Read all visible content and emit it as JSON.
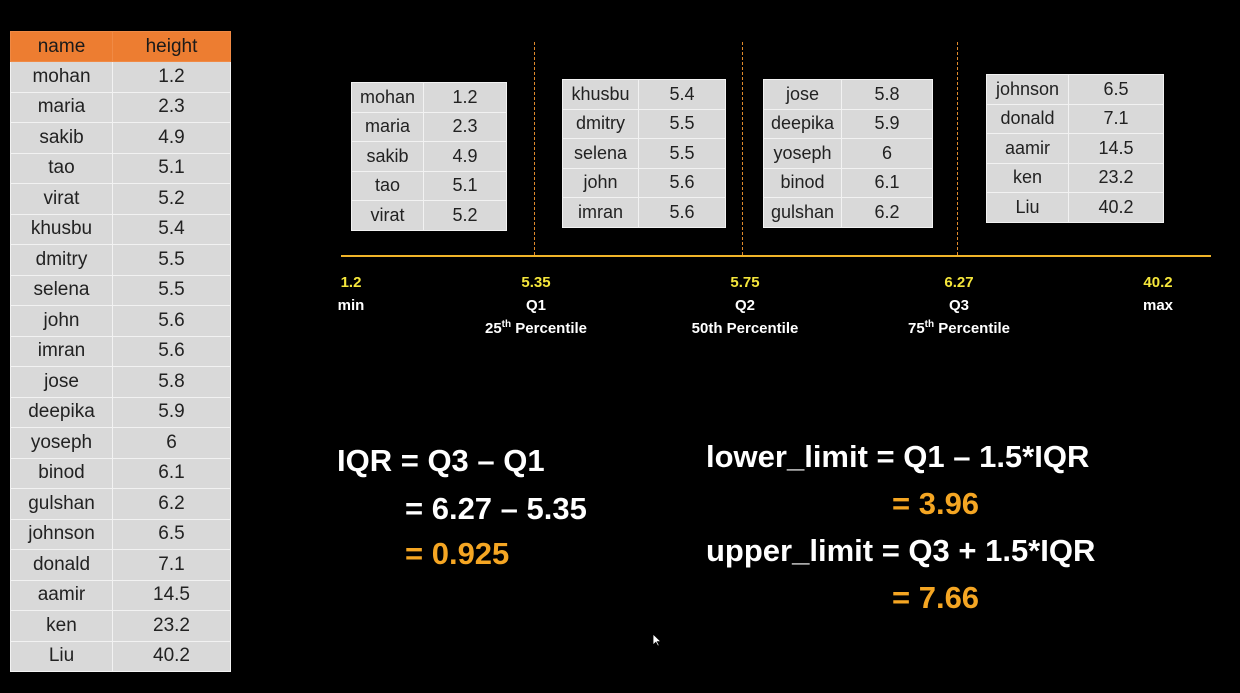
{
  "main_table": {
    "headers": [
      "name",
      "height"
    ],
    "rows": [
      [
        "mohan",
        "1.2"
      ],
      [
        "maria",
        "2.3"
      ],
      [
        "sakib",
        "4.9"
      ],
      [
        "tao",
        "5.1"
      ],
      [
        "virat",
        "5.2"
      ],
      [
        "khusbu",
        "5.4"
      ],
      [
        "dmitry",
        "5.5"
      ],
      [
        "selena",
        "5.5"
      ],
      [
        "john",
        "5.6"
      ],
      [
        "imran",
        "5.6"
      ],
      [
        "jose",
        "5.8"
      ],
      [
        "deepika",
        "5.9"
      ],
      [
        "yoseph",
        "6"
      ],
      [
        "binod",
        "6.1"
      ],
      [
        "gulshan",
        "6.2"
      ],
      [
        "johnson",
        "6.5"
      ],
      [
        "donald",
        "7.1"
      ],
      [
        "aamir",
        "14.5"
      ],
      [
        "ken",
        "23.2"
      ],
      [
        "Liu",
        "40.2"
      ]
    ]
  },
  "groups": [
    {
      "rows": [
        [
          "mohan",
          "1.2"
        ],
        [
          "maria",
          "2.3"
        ],
        [
          "sakib",
          "4.9"
        ],
        [
          "tao",
          "5.1"
        ],
        [
          "virat",
          "5.2"
        ]
      ]
    },
    {
      "rows": [
        [
          "khusbu",
          "5.4"
        ],
        [
          "dmitry",
          "5.5"
        ],
        [
          "selena",
          "5.5"
        ],
        [
          "john",
          "5.6"
        ],
        [
          "imran",
          "5.6"
        ]
      ]
    },
    {
      "rows": [
        [
          "jose",
          "5.8"
        ],
        [
          "deepika",
          "5.9"
        ],
        [
          "yoseph",
          "6"
        ],
        [
          "binod",
          "6.1"
        ],
        [
          "gulshan",
          "6.2"
        ]
      ]
    },
    {
      "rows": [
        [
          "johnson",
          "6.5"
        ],
        [
          "donald",
          "7.1"
        ],
        [
          "aamir",
          "14.5"
        ],
        [
          "ken",
          "23.2"
        ],
        [
          "Liu",
          "40.2"
        ]
      ]
    }
  ],
  "number_line": {
    "min": {
      "value": "1.2",
      "label": "min"
    },
    "q1": {
      "value": "5.35",
      "label": "Q1",
      "sub_num": "25",
      "sub_sup": "th",
      "sub_text": " Percentile"
    },
    "q2": {
      "value": "5.75",
      "label": "Q2",
      "sub": "50th Percentile"
    },
    "q3": {
      "value": "6.27",
      "label": "Q3",
      "sub_num": "75",
      "sub_sup": "th",
      "sub_text": " Percentile"
    },
    "max": {
      "value": "40.2",
      "label": "max"
    }
  },
  "formulas": {
    "iqr_line1": "IQR = Q3 – Q1",
    "iqr_line2": "= 6.27 – 5.35",
    "iqr_result": "= 0.925",
    "lower_line": "lower_limit = Q1 – 1.5*IQR",
    "lower_result": "= 3.96",
    "upper_line": "upper_limit = Q3 + 1.5*IQR",
    "upper_result": "= 7.66"
  },
  "colors": {
    "background": "#000000",
    "table_header": "#ED7D31",
    "table_cell": "#D9D9D9",
    "axis": "#F0B429",
    "tick_value": "#F5E63B",
    "result": "#F5A623"
  },
  "icons": {
    "cursor": "mouse-pointer-icon"
  }
}
